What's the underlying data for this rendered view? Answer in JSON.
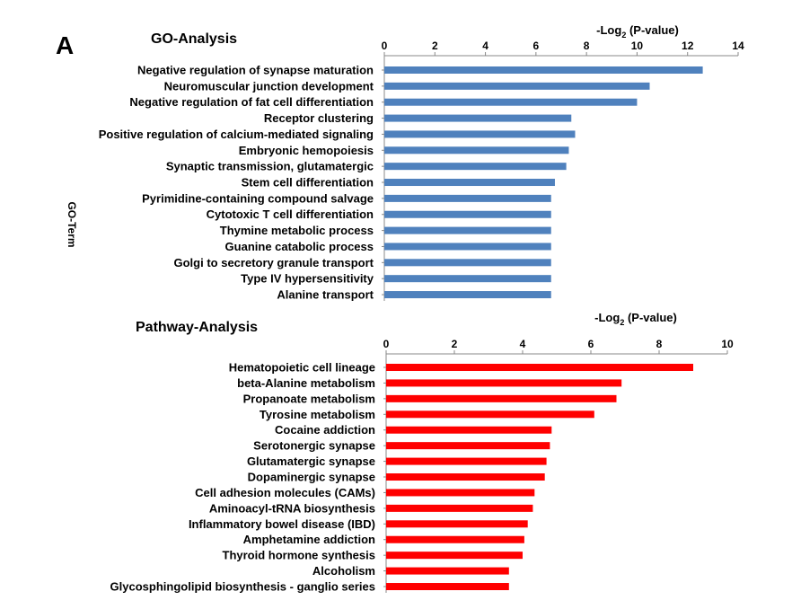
{
  "panel_letter": "A",
  "chart_data": [
    {
      "type": "bar",
      "orientation": "horizontal",
      "title": "GO-Analysis",
      "xlabel_prefix": "-Log",
      "xlabel_sub": "2",
      "xlabel_suffix": " (P-value)",
      "ylabel": "GO-Term",
      "xlim": [
        0,
        14
      ],
      "xticks": [
        "0",
        "2",
        "4",
        "6",
        "8",
        "10",
        "12",
        "14"
      ],
      "color": "#4f81bd",
      "categories": [
        "Negative regulation of synapse maturation",
        "Neuromuscular junction development",
        "Negative regulation of fat cell differentiation",
        "Receptor clustering",
        "Positive regulation of calcium-mediated signaling",
        "Embryonic hemopoiesis",
        "Synaptic transmission, glutamatergic",
        "Stem cell differentiation",
        "Pyrimidine-containing compound salvage",
        "Cytotoxic T cell differentiation",
        "Thymine metabolic process",
        "Guanine catabolic process",
        "Golgi to secretory granule transport",
        "Type IV hypersensitivity",
        "Alanine transport"
      ],
      "values": [
        12.6,
        10.5,
        10.0,
        7.4,
        7.55,
        7.3,
        7.2,
        6.75,
        6.6,
        6.6,
        6.6,
        6.6,
        6.6,
        6.6,
        6.6
      ]
    },
    {
      "type": "bar",
      "orientation": "horizontal",
      "title": "Pathway-Analysis",
      "xlabel_prefix": "-Log",
      "xlabel_sub": "2",
      "xlabel_suffix": " (P-value)",
      "ylabel": "",
      "xlim": [
        0,
        10
      ],
      "xticks": [
        "0",
        "2",
        "4",
        "6",
        "8",
        "10"
      ],
      "color": "#ff0000",
      "categories": [
        "Hematopoietic cell lineage",
        "beta-Alanine metabolism",
        "Propanoate metabolism",
        "Tyrosine metabolism",
        "Cocaine addiction",
        "Serotonergic synapse",
        "Glutamatergic synapse",
        "Dopaminergic synapse",
        "Cell adhesion molecules (CAMs)",
        "Aminoacyl-tRNA biosynthesis",
        "Inflammatory bowel disease (IBD)",
        "Amphetamine addiction",
        "Thyroid hormone synthesis",
        "Alcoholism",
        "Glycosphingolipid biosynthesis - ganglio series"
      ],
      "values": [
        9.0,
        6.9,
        6.75,
        6.1,
        4.85,
        4.8,
        4.7,
        4.65,
        4.35,
        4.3,
        4.15,
        4.05,
        4.0,
        3.6,
        3.6
      ]
    }
  ]
}
